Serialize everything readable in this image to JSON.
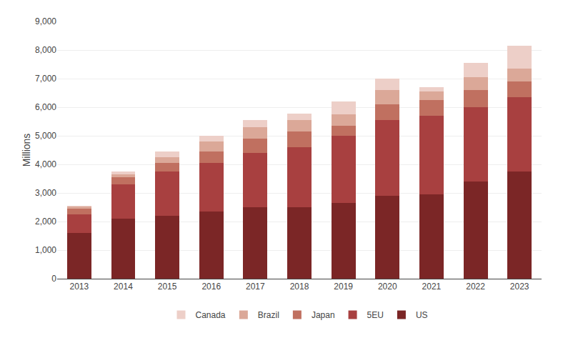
{
  "chart_data": {
    "type": "bar",
    "stacked": true,
    "categories": [
      "2013",
      "2014",
      "2015",
      "2016",
      "2017",
      "2018",
      "2019",
      "2020",
      "2021",
      "2022",
      "2023"
    ],
    "series": [
      {
        "name": "US",
        "color": "#7b2626",
        "values": [
          1600,
          2100,
          2200,
          2350,
          2500,
          2500,
          2650,
          2900,
          2950,
          3400,
          3750
        ]
      },
      {
        "name": "5EU",
        "color": "#a84040",
        "values": [
          650,
          1200,
          1550,
          1700,
          1900,
          2100,
          2350,
          2650,
          2750,
          2600,
          2600
        ]
      },
      {
        "name": "Japan",
        "color": "#c07060",
        "values": [
          200,
          250,
          300,
          400,
          500,
          550,
          350,
          550,
          550,
          600,
          550
        ]
      },
      {
        "name": "Brazil",
        "color": "#dba898",
        "values": [
          75,
          100,
          200,
          350,
          400,
          400,
          400,
          500,
          300,
          450,
          450
        ]
      },
      {
        "name": "Canada",
        "color": "#edcfc8",
        "values": [
          25,
          100,
          200,
          200,
          240,
          230,
          450,
          400,
          150,
          500,
          800
        ]
      }
    ],
    "ylabel": "Millions",
    "ylim": [
      0,
      9000
    ],
    "yticks": [
      0,
      {
        "value": 1000,
        "label": "1,000"
      },
      {
        "value": 2000,
        "label": "2,000"
      },
      {
        "value": 3000,
        "label": "3,000"
      },
      {
        "value": 4000,
        "label": "4,000"
      },
      {
        "value": 5000,
        "label": "5,000"
      },
      {
        "value": 6000,
        "label": "6,000"
      },
      {
        "value": 7000,
        "label": "7,000"
      },
      {
        "value": 8000,
        "label": "8,000"
      },
      {
        "value": 9000,
        "label": "9,000"
      }
    ],
    "grid": true,
    "legend": "bottom"
  }
}
